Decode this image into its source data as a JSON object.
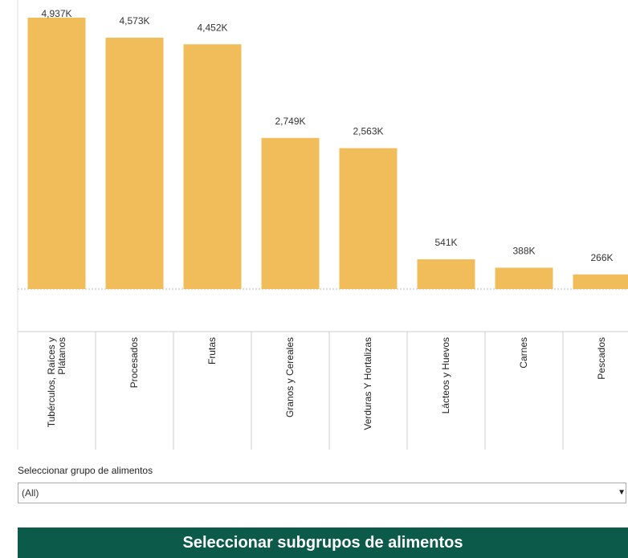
{
  "chart_data": {
    "type": "bar",
    "categories": [
      "Tubérculos, Raíces y Plátanos",
      "Procesados",
      "Frutas",
      "Granos y Cereales",
      "Verduras Y Hortalizas",
      "Lácteos y Huevos",
      "Carnes",
      "Pescados"
    ],
    "values": [
      4937,
      4573,
      4452,
      2749,
      2563,
      541,
      388,
      266
    ],
    "value_labels": [
      "4,937K",
      "4,573K",
      "4,452K",
      "2,749K",
      "2,563K",
      "541K",
      "388K",
      "266K"
    ],
    "color": "#f0bd5a"
  },
  "filter": {
    "label": "Seleccionar grupo de alimentos",
    "value": "(All)"
  },
  "banner": {
    "title": "Seleccionar subgrupos de alimentos"
  }
}
